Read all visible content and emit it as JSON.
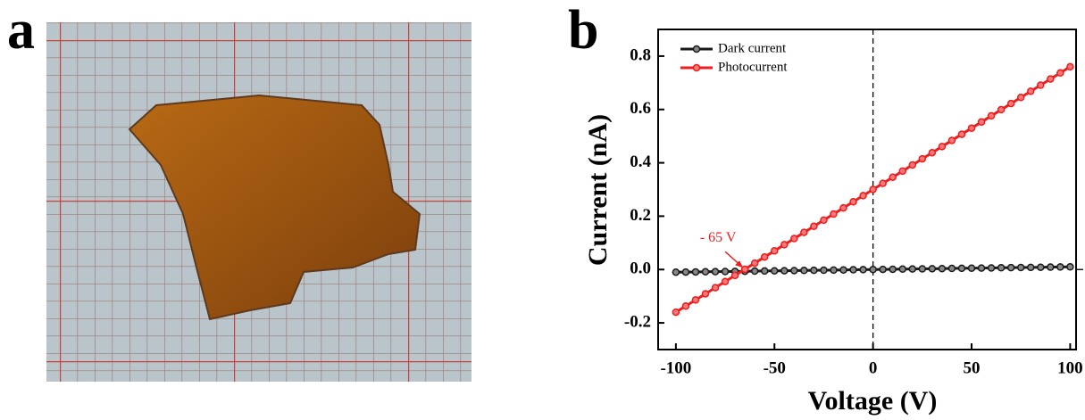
{
  "figure_labels": [
    "a",
    "b"
  ],
  "chart_data": {
    "type": "line",
    "x_label": "Voltage (V)",
    "y_label": "Current (nA)",
    "x": [
      -100,
      -95,
      -90,
      -85,
      -80,
      -75,
      -70,
      -65,
      -60,
      -55,
      -50,
      -45,
      -40,
      -35,
      -30,
      -25,
      -20,
      -15,
      -10,
      -5,
      0,
      5,
      10,
      15,
      20,
      25,
      30,
      35,
      40,
      45,
      50,
      55,
      60,
      65,
      70,
      75,
      80,
      85,
      90,
      95,
      100
    ],
    "series": [
      {
        "name": "Dark current",
        "color": "#1a1a1a",
        "values": [
          -0.01,
          -0.0095,
          -0.009,
          -0.0085,
          -0.008,
          -0.0075,
          -0.007,
          -0.0065,
          -0.006,
          -0.0055,
          -0.005,
          -0.0045,
          -0.004,
          -0.0035,
          -0.003,
          -0.0025,
          -0.002,
          -0.0015,
          -0.001,
          -0.0005,
          0,
          0.0005,
          0.001,
          0.0015,
          0.002,
          0.0025,
          0.003,
          0.0035,
          0.004,
          0.0045,
          0.005,
          0.0055,
          0.006,
          0.0065,
          0.007,
          0.0075,
          0.008,
          0.0085,
          0.009,
          0.0095,
          0.01
        ]
      },
      {
        "name": "Photocurrent",
        "color": "#ee1c1c",
        "values": [
          -0.16,
          -0.137,
          -0.114,
          -0.091,
          -0.068,
          -0.045,
          -0.022,
          0.001,
          0.024,
          0.047,
          0.07,
          0.093,
          0.116,
          0.139,
          0.162,
          0.185,
          0.208,
          0.231,
          0.254,
          0.277,
          0.3,
          0.323,
          0.346,
          0.369,
          0.392,
          0.415,
          0.438,
          0.461,
          0.484,
          0.507,
          0.53,
          0.553,
          0.576,
          0.599,
          0.622,
          0.645,
          0.668,
          0.691,
          0.714,
          0.737,
          0.76
        ]
      }
    ],
    "xlim": [
      -109,
      103
    ],
    "ylim": [
      -0.3,
      0.9
    ],
    "xticks": [
      -100,
      -50,
      0,
      50,
      100
    ],
    "yticks": [
      -0.2,
      {
        "value": 0,
        "label": "0.0"
      },
      0.2,
      0.4,
      0.6,
      0.8
    ],
    "vline": 0,
    "annotation": {
      "text": "- 65 V",
      "x": -65,
      "y": 0,
      "color": "#ee1c1c"
    },
    "legend": "upper left"
  }
}
